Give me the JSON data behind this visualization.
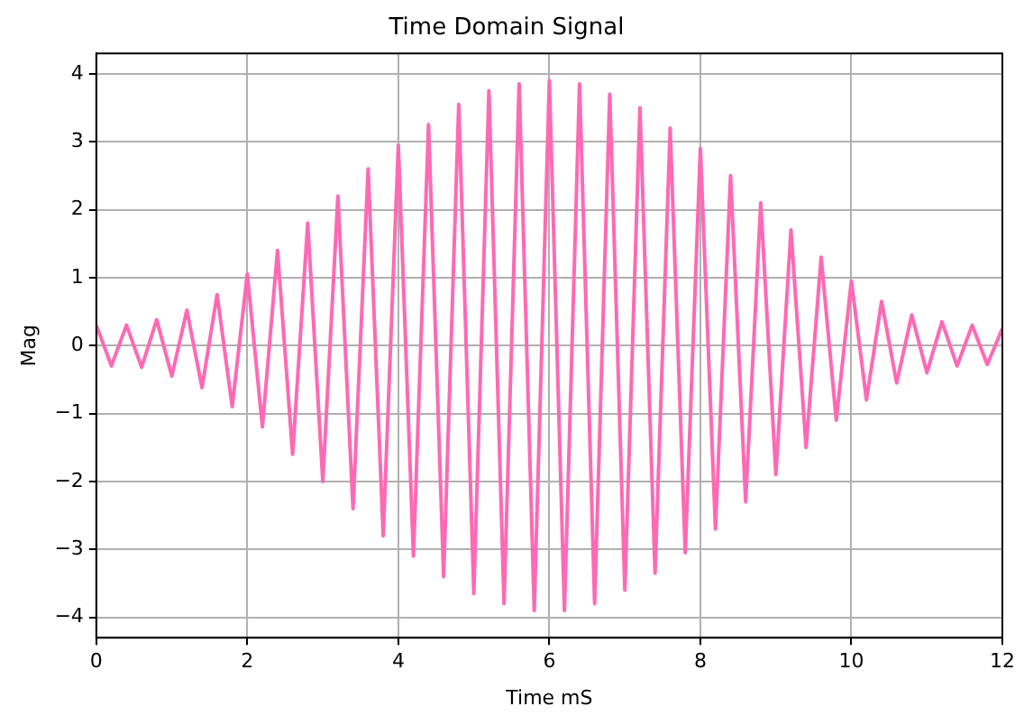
{
  "chart_data": {
    "type": "line",
    "title": "Time Domain Signal",
    "xlabel": "Time mS",
    "ylabel": "Mag",
    "x": [
      0,
      0.2,
      0.4,
      0.6,
      0.8,
      1.0,
      1.2,
      1.4,
      1.6,
      1.8,
      2.0,
      2.2,
      2.4,
      2.6,
      2.8,
      3.0,
      3.2,
      3.4,
      3.6,
      3.8,
      4.0,
      4.2,
      4.4,
      4.6,
      4.8,
      5.0,
      5.2,
      5.4,
      5.6,
      5.8,
      6.0,
      6.2,
      6.4,
      6.6,
      6.8,
      7.0,
      7.2,
      7.4,
      7.6,
      7.8,
      8.0,
      8.2,
      8.4,
      8.6,
      8.8,
      9.0,
      9.2,
      9.4,
      9.6,
      9.8,
      10.0,
      10.2,
      10.4,
      10.6,
      10.8,
      11.0,
      11.2,
      11.4,
      11.6,
      11.8,
      12.0
    ],
    "series": [
      {
        "color": "#ff69b4",
        "values": [
          0.3,
          -0.3,
          0.3,
          -0.32,
          0.38,
          -0.45,
          0.52,
          -0.62,
          0.75,
          -0.9,
          1.05,
          -1.2,
          1.4,
          -1.6,
          1.8,
          -2.0,
          2.2,
          -2.4,
          2.6,
          -2.8,
          2.95,
          -3.1,
          3.25,
          -3.4,
          3.55,
          -3.65,
          3.75,
          -3.8,
          3.85,
          -3.9,
          3.9,
          -3.9,
          3.85,
          -3.8,
          3.7,
          -3.6,
          3.5,
          -3.35,
          3.2,
          -3.05,
          2.9,
          -2.7,
          2.5,
          -2.3,
          2.1,
          -1.9,
          1.7,
          -1.5,
          1.3,
          -1.1,
          0.95,
          -0.8,
          0.65,
          -0.55,
          0.45,
          -0.4,
          0.35,
          -0.3,
          0.3,
          -0.28,
          0.25
        ]
      }
    ],
    "xlim": [
      0,
      12
    ],
    "xticks": [
      0,
      2,
      4,
      6,
      8,
      10,
      12
    ],
    "ylim": [
      -4.3,
      4.3
    ],
    "yticks": [
      -4,
      -3,
      -2,
      -1,
      0,
      1,
      2,
      3,
      4
    ],
    "grid": true,
    "legend": false,
    "marker": "none",
    "line_style": "solid"
  }
}
